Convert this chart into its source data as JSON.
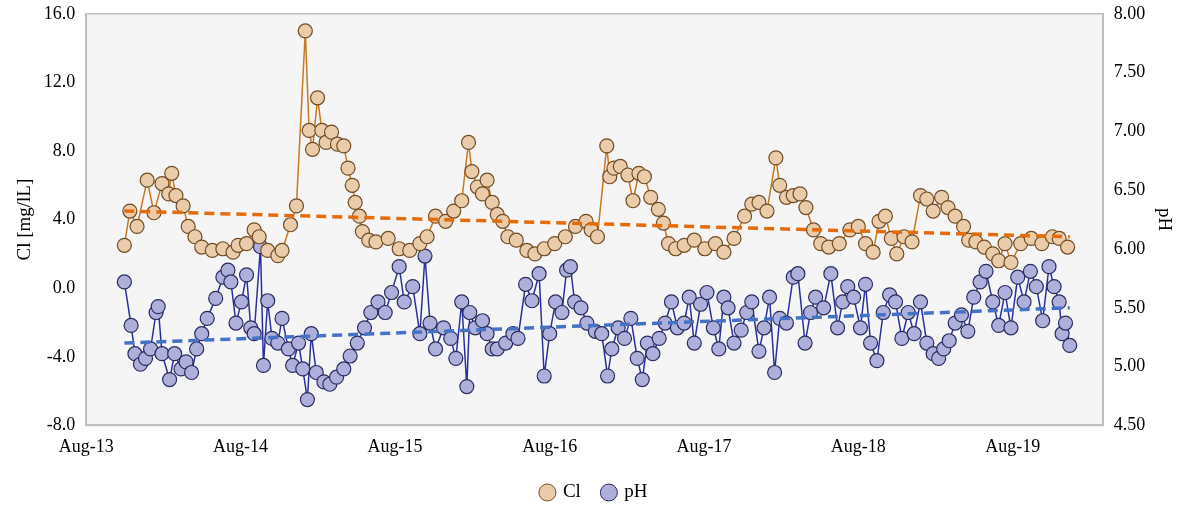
{
  "chart_data": {
    "type": "line",
    "ylabel": "Cl [mg/lL]",
    "y2label": "pH",
    "marker": "circle",
    "line_style": "solid",
    "grid": false,
    "legend": "bottom",
    "xlim": [
      "2013-08-01",
      "2020-03-01"
    ],
    "xticks": [
      {
        "value": "2013-08-01",
        "label": "Aug-13"
      },
      {
        "value": "2014-08-01",
        "label": "Aug-14"
      },
      {
        "value": "2015-08-01",
        "label": "Aug-15"
      },
      {
        "value": "2016-08-01",
        "label": "Aug-16"
      },
      {
        "value": "2017-08-01",
        "label": "Aug-17"
      },
      {
        "value": "2018-08-01",
        "label": "Aug-18"
      },
      {
        "value": "2019-08-01",
        "label": "Aug-19"
      }
    ],
    "ylim": [
      -8,
      16
    ],
    "yticks": [
      {
        "value": -8,
        "label": "-8.0"
      },
      {
        "value": -4,
        "label": "-4.0"
      },
      {
        "value": 0,
        "label": "0.0"
      },
      {
        "value": 4,
        "label": "4.0"
      },
      {
        "value": 8,
        "label": "8.0"
      },
      {
        "value": 12,
        "label": "12.0"
      },
      {
        "value": 16,
        "label": "16.0"
      }
    ],
    "y2lim": [
      4.5,
      8
    ],
    "y2ticks": [
      {
        "value": 4.5,
        "label": "4.50"
      },
      {
        "value": 5,
        "label": "5.00"
      },
      {
        "value": 5.5,
        "label": "5.50"
      },
      {
        "value": 6,
        "label": "6.00"
      },
      {
        "value": 6.5,
        "label": "6.50"
      },
      {
        "value": 7,
        "label": "7.00"
      },
      {
        "value": 7.5,
        "label": "7.50"
      },
      {
        "value": 8,
        "label": "8.00"
      }
    ],
    "series": [
      {
        "name": "Cl",
        "color": "#c8781e",
        "x": [
          "2013-10-30",
          "2013-11-12",
          "2013-11-29",
          "2013-12-23",
          "2014-01-08",
          "2014-01-27",
          "2014-02-12",
          "2014-02-19",
          "2014-03-01",
          "2014-03-18",
          "2014-03-30",
          "2014-04-15",
          "2014-05-01",
          "2014-05-26",
          "2014-06-20",
          "2014-07-14",
          "2014-07-26",
          "2014-08-15",
          "2014-09-02",
          "2014-09-14",
          "2014-10-04",
          "2014-10-28",
          "2014-11-07",
          "2014-11-27",
          "2014-12-11",
          "2015-01-01",
          "2015-01-10",
          "2015-01-18",
          "2015-01-30",
          "2015-02-09",
          "2015-02-19",
          "2015-03-04",
          "2015-03-18",
          "2015-04-02",
          "2015-04-12",
          "2015-04-22",
          "2015-04-29",
          "2015-05-09",
          "2015-05-16",
          "2015-05-31",
          "2015-06-17",
          "2015-07-16",
          "2015-08-11",
          "2015-09-05",
          "2015-09-29",
          "2015-10-16",
          "2015-11-05",
          "2015-11-29",
          "2015-12-18",
          "2016-01-06",
          "2016-01-22",
          "2016-01-30",
          "2016-02-12",
          "2016-02-24",
          "2016-03-06",
          "2016-03-18",
          "2016-03-30",
          "2016-04-12",
          "2016-04-24",
          "2016-05-14",
          "2016-06-08",
          "2016-06-27",
          "2016-07-19",
          "2016-08-13",
          "2016-09-07",
          "2016-10-01",
          "2016-10-26",
          "2016-11-07",
          "2016-11-22",
          "2016-12-14",
          "2016-12-21",
          "2016-12-31",
          "2017-01-15",
          "2017-02-02",
          "2017-02-14",
          "2017-02-28",
          "2017-03-13",
          "2017-03-28",
          "2017-04-15",
          "2017-04-27",
          "2017-05-09",
          "2017-05-26",
          "2017-06-15",
          "2017-07-09",
          "2017-08-03",
          "2017-08-28",
          "2017-09-17",
          "2017-10-11",
          "2017-11-05",
          "2017-11-22",
          "2017-12-09",
          "2017-12-28",
          "2018-01-18",
          "2018-01-27",
          "2018-02-12",
          "2018-02-28",
          "2018-03-16",
          "2018-03-30",
          "2018-04-17",
          "2018-05-04",
          "2018-05-23",
          "2018-06-17",
          "2018-07-12",
          "2018-08-01",
          "2018-08-18",
          "2018-09-05",
          "2018-09-19",
          "2018-10-04",
          "2018-10-18",
          "2018-10-31",
          "2018-11-17",
          "2018-12-06",
          "2018-12-26",
          "2019-01-10",
          "2019-01-25",
          "2019-02-14",
          "2019-03-01",
          "2019-03-18",
          "2019-04-07",
          "2019-04-19",
          "2019-05-06",
          "2019-05-26",
          "2019-06-15",
          "2019-06-29",
          "2019-07-14",
          "2019-07-28",
          "2019-08-20",
          "2019-09-14",
          "2019-10-09",
          "2019-11-03",
          "2019-11-19",
          "2019-12-09"
        ],
        "values": [
          2.5,
          4.5,
          3.6,
          6.3,
          4.4,
          6.1,
          5.5,
          6.7,
          5.4,
          4.8,
          3.6,
          3.0,
          2.4,
          2.2,
          2.3,
          2.1,
          2.5,
          2.6,
          3.4,
          3.0,
          2.2,
          1.9,
          2.2,
          3.7,
          4.8,
          15.0,
          9.2,
          8.1,
          11.1,
          9.2,
          8.5,
          9.1,
          8.4,
          8.3,
          7.0,
          6.0,
          5.0,
          4.2,
          3.3,
          2.8,
          2.7,
          2.9,
          2.3,
          2.2,
          2.6,
          3.0,
          4.2,
          3.9,
          4.5,
          5.1,
          8.5,
          6.8,
          5.9,
          5.5,
          6.3,
          5.0,
          4.3,
          3.9,
          3.0,
          2.8,
          2.2,
          2.0,
          2.3,
          2.6,
          3.0,
          3.6,
          3.9,
          3.4,
          3.0,
          8.3,
          6.5,
          7.0,
          7.1,
          6.6,
          5.1,
          6.7,
          6.5,
          5.3,
          4.6,
          3.8,
          2.6,
          2.3,
          2.5,
          2.8,
          2.3,
          2.6,
          2.1,
          2.9,
          4.2,
          4.9,
          5.0,
          4.5,
          7.6,
          6.0,
          5.3,
          5.4,
          5.5,
          4.7,
          3.4,
          2.6,
          2.4,
          2.6,
          3.4,
          3.6,
          2.6,
          2.1,
          3.9,
          4.2,
          2.9,
          2.0,
          3.0,
          2.7,
          5.4,
          5.2,
          4.5,
          5.3,
          4.7,
          4.2,
          3.6,
          2.8,
          2.7,
          2.4,
          2.0,
          1.6,
          2.6,
          1.5,
          2.6,
          2.9,
          2.6,
          3.0,
          2.9,
          2.4
        ]
      },
      {
        "name": "pH",
        "color": "#2a30a0",
        "axis": "y2",
        "x": [
          "2013-10-30",
          "2013-11-15",
          "2013-11-24",
          "2013-12-07",
          "2013-12-19",
          "2013-12-31",
          "2014-01-13",
          "2014-01-18",
          "2014-01-27",
          "2014-02-14",
          "2014-02-26",
          "2014-03-13",
          "2014-03-25",
          "2014-04-07",
          "2014-04-19",
          "2014-05-01",
          "2014-05-14",
          "2014-06-03",
          "2014-06-20",
          "2014-07-02",
          "2014-07-09",
          "2014-07-21",
          "2014-08-03",
          "2014-08-15",
          "2014-08-25",
          "2014-09-02",
          "2014-09-17",
          "2014-09-24",
          "2014-10-04",
          "2014-10-14",
          "2014-10-28",
          "2014-11-07",
          "2014-11-22",
          "2014-12-02",
          "2014-12-16",
          "2014-12-26",
          "2015-01-06",
          "2015-01-15",
          "2015-01-27",
          "2015-02-14",
          "2015-02-28",
          "2015-03-16",
          "2015-04-02",
          "2015-04-17",
          "2015-05-04",
          "2015-05-21",
          "2015-06-05",
          "2015-06-22",
          "2015-07-09",
          "2015-07-24",
          "2015-08-11",
          "2015-08-23",
          "2015-09-12",
          "2015-09-29",
          "2015-10-11",
          "2015-10-23",
          "2015-11-05",
          "2015-11-24",
          "2015-12-11",
          "2015-12-23",
          "2016-01-06",
          "2016-01-18",
          "2016-01-25",
          "2016-02-07",
          "2016-02-24",
          "2016-03-06",
          "2016-03-18",
          "2016-03-30",
          "2016-04-19",
          "2016-05-06",
          "2016-05-18",
          "2016-06-05",
          "2016-06-20",
          "2016-07-07",
          "2016-07-19",
          "2016-08-01",
          "2016-08-15",
          "2016-08-30",
          "2016-09-10",
          "2016-09-19",
          "2016-09-29",
          "2016-10-14",
          "2016-10-28",
          "2016-11-17",
          "2016-12-02",
          "2016-12-16",
          "2016-12-26",
          "2017-01-10",
          "2017-01-25",
          "2017-02-09",
          "2017-02-24",
          "2017-03-08",
          "2017-03-20",
          "2017-04-02",
          "2017-04-17",
          "2017-05-01",
          "2017-05-16",
          "2017-05-30",
          "2017-06-15",
          "2017-06-27",
          "2017-07-09",
          "2017-07-24",
          "2017-08-08",
          "2017-08-23",
          "2017-09-05",
          "2017-09-17",
          "2017-09-27",
          "2017-10-11",
          "2017-10-28",
          "2017-11-10",
          "2017-11-22",
          "2017-12-09",
          "2017-12-21",
          "2018-01-03",
          "2018-01-15",
          "2018-01-27",
          "2018-02-12",
          "2018-02-28",
          "2018-03-11",
          "2018-03-28",
          "2018-04-10",
          "2018-04-22",
          "2018-05-11",
          "2018-05-28",
          "2018-06-13",
          "2018-06-25",
          "2018-07-07",
          "2018-07-21",
          "2018-08-06",
          "2018-08-18",
          "2018-08-30",
          "2018-09-14",
          "2018-09-29",
          "2018-10-14",
          "2018-10-28",
          "2018-11-12",
          "2018-11-27",
          "2018-12-11",
          "2018-12-26",
          "2019-01-10",
          "2019-01-25",
          "2019-02-07",
          "2019-02-19",
          "2019-03-04",
          "2019-03-18",
          "2019-04-02",
          "2019-04-17",
          "2019-05-01",
          "2019-05-16",
          "2019-05-30",
          "2019-06-15",
          "2019-06-29",
          "2019-07-14",
          "2019-07-28",
          "2019-08-13",
          "2019-08-28",
          "2019-09-12",
          "2019-09-26",
          "2019-10-11",
          "2019-10-26",
          "2019-11-07",
          "2019-11-19",
          "2019-11-26",
          "2019-12-04",
          "2019-12-14"
        ],
        "values": [
          5.72,
          5.35,
          5.11,
          5.02,
          5.07,
          5.15,
          5.46,
          5.51,
          5.11,
          4.89,
          5.11,
          4.98,
          5.04,
          4.95,
          5.15,
          5.28,
          5.41,
          5.58,
          5.76,
          5.82,
          5.72,
          5.37,
          5.55,
          5.78,
          5.33,
          5.28,
          6.02,
          5.01,
          5.56,
          5.24,
          5.2,
          5.41,
          5.15,
          5.01,
          5.2,
          4.98,
          4.72,
          5.28,
          4.95,
          4.87,
          4.85,
          4.91,
          4.98,
          5.09,
          5.2,
          5.33,
          5.46,
          5.55,
          5.46,
          5.63,
          5.85,
          5.55,
          5.68,
          5.28,
          5.94,
          5.37,
          5.15,
          5.33,
          5.24,
          5.07,
          5.55,
          4.83,
          5.46,
          5.33,
          5.39,
          5.28,
          5.15,
          5.15,
          5.2,
          5.28,
          5.24,
          5.7,
          5.56,
          5.79,
          4.92,
          5.28,
          5.55,
          5.46,
          5.82,
          5.85,
          5.55,
          5.5,
          5.37,
          5.3,
          5.28,
          4.92,
          5.15,
          5.33,
          5.24,
          5.41,
          5.07,
          4.89,
          5.2,
          5.11,
          5.24,
          5.37,
          5.55,
          5.33,
          5.37,
          5.59,
          5.2,
          5.53,
          5.63,
          5.33,
          5.15,
          5.59,
          5.5,
          5.2,
          5.31,
          5.46,
          5.55,
          5.13,
          5.33,
          5.59,
          4.95,
          5.41,
          5.37,
          5.76,
          5.79,
          5.2,
          5.46,
          5.59,
          5.5,
          5.79,
          5.33,
          5.55,
          5.68,
          5.59,
          5.33,
          5.7,
          5.2,
          5.05,
          5.46,
          5.61,
          5.55,
          5.24,
          5.46,
          5.28,
          5.55,
          5.2,
          5.11,
          5.07,
          5.15,
          5.22,
          5.37,
          5.44,
          5.3,
          5.59,
          5.72,
          5.81,
          5.55,
          5.35,
          5.63,
          5.33,
          5.76,
          5.55,
          5.81,
          5.68,
          5.39,
          5.85,
          5.68,
          5.55,
          5.28,
          5.37,
          5.18
        ]
      },
      {
        "type": "line",
        "color": "#e46c0a",
        "marker": "none",
        "line_style": "dashed",
        "x": [
          "2013-10-30",
          "2019-12-14"
        ],
        "values": [
          4.5,
          3.0
        ]
      },
      {
        "type": "line",
        "color": "#4472c4",
        "marker": "none",
        "line_style": "dashed",
        "axis": "y2",
        "x": [
          "2013-10-30",
          "2019-12-14"
        ],
        "values": [
          5.2,
          5.5
        ]
      }
    ]
  }
}
